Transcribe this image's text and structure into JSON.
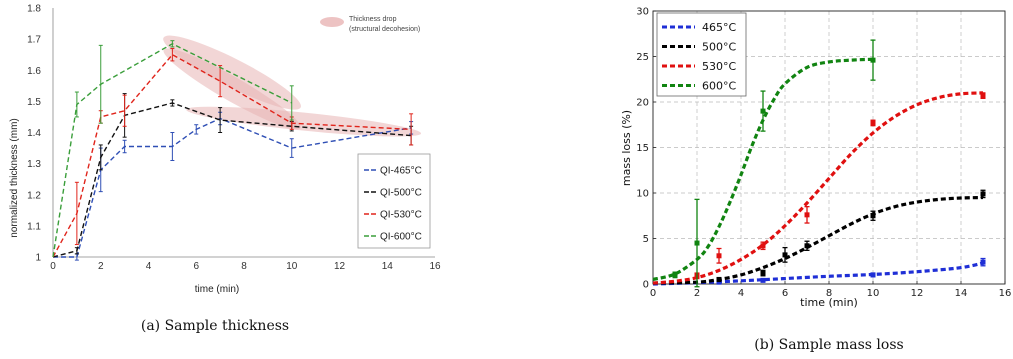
{
  "captions": {
    "a": "(a) Sample thickness",
    "b": "(b) Sample mass loss"
  },
  "chart_data": [
    {
      "type": "line",
      "xlabel": "time (min)",
      "ylabel": "normalized thickness (mm)",
      "xlim": [
        0,
        16
      ],
      "ylim": [
        1,
        1.8
      ],
      "xticks": [
        0,
        2,
        4,
        6,
        8,
        10,
        12,
        14,
        16
      ],
      "yticks": [
        1,
        1.1,
        1.2,
        1.3,
        1.4,
        1.5,
        1.6,
        1.7,
        1.8
      ],
      "grid": false,
      "legend": "right",
      "annotation": [
        "Thickness drop",
        "(structural decohesion)"
      ],
      "series": [
        {
          "name": "QI-465°C",
          "color": "#2f4fb5",
          "x": [
            0,
            1,
            2,
            3,
            5,
            6,
            7,
            10,
            15
          ],
          "y": [
            1.0,
            1.0,
            1.28,
            1.355,
            1.355,
            1.41,
            1.445,
            1.35,
            1.415
          ],
          "err": [
            0,
            0.01,
            0.07,
            0.02,
            0.045,
            0.015,
            0.02,
            0.03,
            0.02
          ]
        },
        {
          "name": "QI-500°C",
          "color": "#111111",
          "x": [
            0,
            1,
            2,
            3,
            5,
            7,
            10,
            15
          ],
          "y": [
            1.0,
            1.02,
            1.32,
            1.455,
            1.495,
            1.44,
            1.42,
            1.39
          ],
          "err": [
            0,
            0.01,
            0.04,
            0.07,
            0.01,
            0.04,
            0.015,
            0.03
          ]
        },
        {
          "name": "QI-530°C",
          "color": "#e0241b",
          "x": [
            0,
            1,
            2,
            3,
            5,
            7,
            10,
            15
          ],
          "y": [
            1.0,
            1.14,
            1.45,
            1.47,
            1.65,
            1.565,
            1.43,
            1.41
          ],
          "err": [
            0,
            0.1,
            0.02,
            0.05,
            0.02,
            0.05,
            0.02,
            0.05
          ]
        },
        {
          "name": "QI-600°C",
          "color": "#3a9e3a",
          "x": [
            0,
            1,
            2,
            5,
            10
          ],
          "y": [
            1.0,
            1.49,
            1.555,
            1.685,
            1.495
          ],
          "err": [
            0,
            0.04,
            0.125,
            0.01,
            0.055
          ]
        }
      ]
    },
    {
      "type": "line",
      "xlabel": "time (min)",
      "ylabel": "mass loss (%)",
      "xlim": [
        0,
        16
      ],
      "ylim": [
        0,
        30
      ],
      "xticks": [
        0,
        2,
        4,
        6,
        8,
        10,
        12,
        14,
        16
      ],
      "yticks": [
        0,
        5,
        10,
        15,
        20,
        25,
        30
      ],
      "grid": true,
      "legend": "top-left",
      "series": [
        {
          "name": "465°C",
          "color": "#1f2fd6",
          "fit": [
            [
              0,
              0.0
            ],
            [
              2,
              0.15
            ],
            [
              4,
              0.35
            ],
            [
              6,
              0.6
            ],
            [
              8,
              0.85
            ],
            [
              10,
              1.05
            ],
            [
              12,
              1.35
            ],
            [
              14,
              1.8
            ],
            [
              15,
              2.3
            ]
          ],
          "x": [
            3,
            5,
            10,
            15
          ],
          "y": [
            0.2,
            0.4,
            1.0,
            2.4
          ],
          "err": [
            0.1,
            0.1,
            0.2,
            0.4
          ]
        },
        {
          "name": "500°C",
          "color": "#000000",
          "fit": [
            [
              0,
              0.1
            ],
            [
              2,
              0.2
            ],
            [
              3,
              0.5
            ],
            [
              4,
              1.0
            ],
            [
              5,
              1.8
            ],
            [
              6,
              2.8
            ],
            [
              7,
              4.0
            ],
            [
              8,
              5.3
            ],
            [
              9,
              6.6
            ],
            [
              10,
              7.7
            ],
            [
              11,
              8.5
            ],
            [
              12,
              9.0
            ],
            [
              13,
              9.3
            ],
            [
              14,
              9.45
            ],
            [
              15,
              9.5
            ]
          ],
          "x": [
            3,
            5,
            6,
            7,
            10,
            15
          ],
          "y": [
            0.5,
            1.2,
            3.2,
            4.2,
            7.5,
            9.9
          ],
          "err": [
            0.2,
            0.3,
            0.8,
            0.5,
            0.5,
            0.4
          ]
        },
        {
          "name": "530°C",
          "color": "#e01010",
          "fit": [
            [
              0,
              0.1
            ],
            [
              1,
              0.3
            ],
            [
              2,
              0.7
            ],
            [
              3,
              1.5
            ],
            [
              4,
              2.7
            ],
            [
              5,
              4.3
            ],
            [
              6,
              6.4
            ],
            [
              7,
              8.9
            ],
            [
              8,
              11.6
            ],
            [
              9,
              14.3
            ],
            [
              10,
              16.6
            ],
            [
              11,
              18.4
            ],
            [
              12,
              19.7
            ],
            [
              13,
              20.5
            ],
            [
              14,
              20.9
            ],
            [
              15,
              21.0
            ]
          ],
          "x": [
            2,
            3,
            5,
            7,
            10,
            15
          ],
          "y": [
            0.9,
            3.1,
            4.2,
            7.6,
            17.7,
            20.7
          ],
          "err": [
            0.3,
            0.8,
            0.4,
            0.9,
            0.3,
            0.3
          ]
        },
        {
          "name": "600°C",
          "color": "#118411",
          "fit": [
            [
              0,
              0.5
            ],
            [
              1,
              1.1
            ],
            [
              2,
              2.7
            ],
            [
              2.5,
              4.1
            ],
            [
              3,
              6.3
            ],
            [
              3.5,
              9.0
            ],
            [
              4,
              12.0
            ],
            [
              4.5,
              15.2
            ],
            [
              5,
              18.0
            ],
            [
              5.5,
              20.3
            ],
            [
              6,
              22.0
            ],
            [
              7,
              23.8
            ],
            [
              8,
              24.4
            ],
            [
              9,
              24.6
            ],
            [
              10,
              24.7
            ]
          ],
          "x": [
            1,
            2,
            5,
            10
          ],
          "y": [
            1.0,
            4.5,
            19.0,
            24.6
          ],
          "err": [
            0.3,
            4.8,
            2.2,
            2.2
          ]
        }
      ]
    }
  ]
}
